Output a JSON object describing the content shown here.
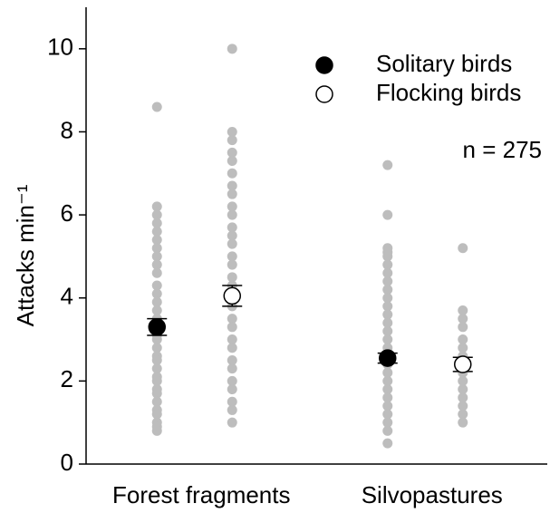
{
  "chart_data": {
    "type": "strip",
    "y_label": "Attacks min⁻¹",
    "annotation": "n = 275",
    "categories": [
      "Forest fragments",
      "Silvopastures"
    ],
    "ylim": [
      0,
      11
    ],
    "yticks": [
      0,
      2,
      4,
      6,
      8,
      10
    ],
    "legend": "upper right",
    "points_color": "#bdbdbd",
    "series": [
      {
        "name": "Solitary birds",
        "color": "#000000",
        "means": [
          3.3,
          2.55
        ],
        "errors": [
          0.2,
          0.12
        ],
        "points": [
          [
            8.6,
            6.2,
            6.0,
            5.8,
            5.6,
            5.4,
            5.2,
            5.0,
            4.8,
            4.6,
            4.3,
            4.1,
            3.9,
            3.7,
            3.5,
            3.3,
            3.1,
            3.0,
            2.8,
            2.6,
            2.5,
            2.3,
            2.1,
            2.0,
            1.8,
            1.7,
            1.5,
            1.3,
            1.2,
            1.0,
            0.9,
            0.8
          ],
          [
            7.2,
            6.0,
            5.2,
            5.1,
            5.0,
            4.8,
            4.6,
            4.4,
            4.2,
            4.0,
            3.8,
            3.6,
            3.4,
            3.2,
            3.0,
            2.8,
            2.6,
            2.4,
            2.2,
            2.0,
            1.8,
            1.6,
            1.4,
            1.2,
            1.0,
            0.8,
            0.5
          ]
        ]
      },
      {
        "name": "Flocking birds",
        "color": "#ffffff",
        "means": [
          4.05,
          2.4
        ],
        "errors": [
          0.25,
          0.17
        ],
        "points": [
          [
            10.0,
            8.0,
            7.8,
            7.5,
            7.3,
            7.0,
            6.7,
            6.5,
            6.2,
            6.0,
            5.7,
            5.5,
            5.3,
            5.0,
            4.8,
            4.5,
            4.3,
            4.0,
            3.8,
            3.5,
            3.3,
            3.0,
            2.8,
            2.5,
            2.3,
            2.0,
            1.8,
            1.5,
            1.3,
            1.0
          ],
          [
            5.2,
            3.7,
            3.5,
            3.3,
            3.0,
            2.8,
            2.6,
            2.4,
            2.2,
            2.0,
            1.8,
            1.6,
            1.4,
            1.2,
            1.0
          ]
        ]
      }
    ]
  }
}
